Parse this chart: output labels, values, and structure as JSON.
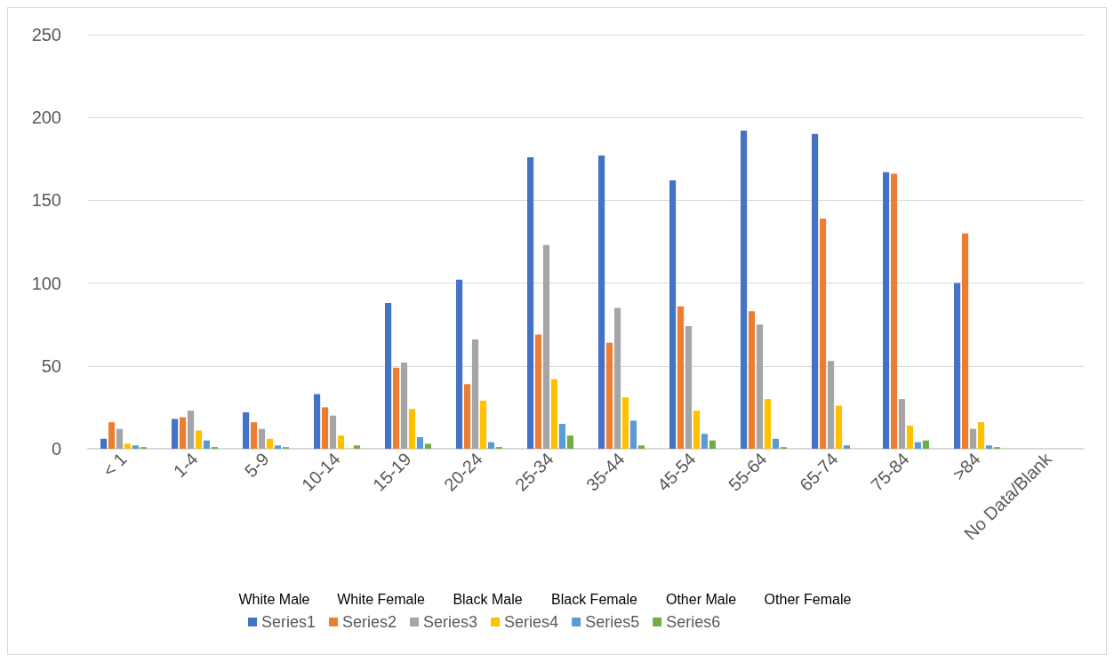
{
  "chart_data": {
    "type": "bar",
    "categories": [
      "< 1",
      "1-4",
      "5-9",
      "10-14",
      "15-19",
      "20-24",
      "25-34",
      "35-44",
      "45-54",
      "55-64",
      "65-74",
      "75-84",
      ">84",
      "No Data/Blank"
    ],
    "series": [
      {
        "name": "Series1",
        "color": "#4472c4",
        "values": [
          6,
          18,
          22,
          33,
          88,
          102,
          176,
          177,
          162,
          192,
          190,
          167,
          100,
          0
        ]
      },
      {
        "name": "Series2",
        "color": "#ed7d31",
        "values": [
          16,
          19,
          16,
          25,
          49,
          39,
          69,
          64,
          86,
          83,
          139,
          166,
          130,
          0
        ]
      },
      {
        "name": "Series3",
        "color": "#a5a5a5",
        "values": [
          12,
          23,
          12,
          20,
          52,
          66,
          123,
          85,
          74,
          75,
          53,
          30,
          12,
          0
        ]
      },
      {
        "name": "Series4",
        "color": "#ffc000",
        "values": [
          3,
          11,
          6,
          8,
          24,
          29,
          42,
          31,
          23,
          30,
          26,
          14,
          16,
          0
        ]
      },
      {
        "name": "Series5",
        "color": "#5b9bd5",
        "values": [
          2,
          5,
          2,
          0,
          7,
          4,
          15,
          17,
          9,
          6,
          2,
          4,
          2,
          0
        ]
      },
      {
        "name": "Series6",
        "color": "#70ad47",
        "values": [
          1,
          1,
          1,
          2,
          3,
          1,
          8,
          2,
          5,
          1,
          0,
          5,
          1,
          0
        ]
      }
    ],
    "annotations": [
      "White Male",
      "White Female",
      "Black Male",
      "Black Female",
      "Other Male",
      "Other Female"
    ],
    "ylim": [
      0,
      250
    ],
    "yticks": [
      0,
      50,
      100,
      150,
      200,
      250
    ],
    "grid": "y",
    "legend": "bottom"
  }
}
